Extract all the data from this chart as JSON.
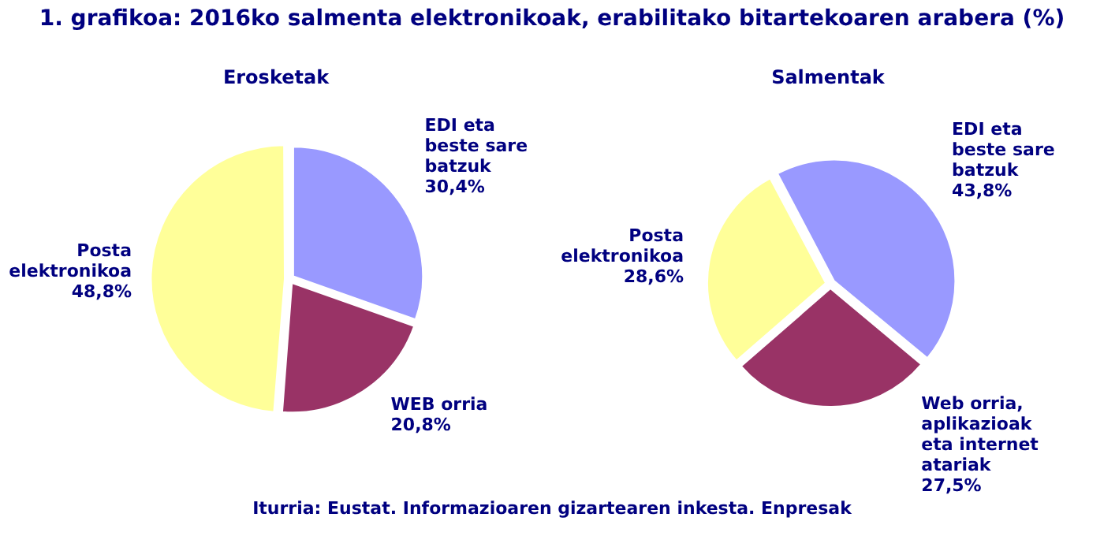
{
  "chart_data": [
    {
      "type": "pie",
      "title": "1. grafikoa: 2016ko salmenta elektronikoak, erabilitako bitartekoaren arabera (%)",
      "subtitle": "Erosketak",
      "categories": [
        "EDI eta beste sare batzuk",
        "WEB orria",
        "Posta elektronikoa"
      ],
      "values": [
        30.4,
        20.8,
        48.8
      ],
      "value_labels": [
        "30,4%",
        "20,8%",
        "48,8%"
      ],
      "colors": [
        "#9999ff",
        "#993366",
        "#ffff99"
      ],
      "legend": false,
      "annotations": [
        "Iturria: Eustat. Informazioaren gizartearen inkesta. Enpresak"
      ]
    },
    {
      "type": "pie",
      "subtitle": "Salmentak",
      "categories": [
        "EDI eta beste sare batzuk",
        "Web orria, aplikazioak eta internet atariak",
        "Posta elektronikoa"
      ],
      "values": [
        43.8,
        27.5,
        28.6
      ],
      "value_labels": [
        "43,8%",
        "27,5%",
        "28,6%"
      ],
      "colors": [
        "#9999ff",
        "#993366",
        "#ffff99"
      ],
      "legend": false
    }
  ]
}
